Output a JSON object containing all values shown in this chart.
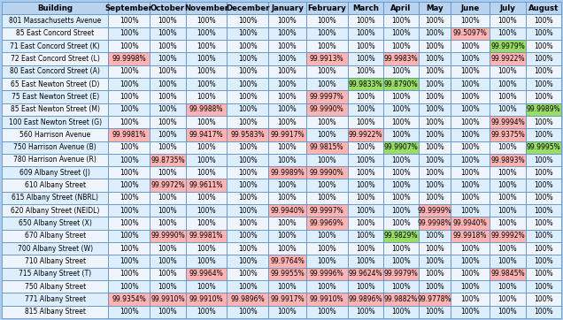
{
  "columns": [
    "Building",
    "September",
    "October",
    "November",
    "December",
    "January",
    "February",
    "March",
    "April",
    "May",
    "June",
    "July",
    "August"
  ],
  "rows": [
    [
      "801 Massachusetts Avenue",
      "100%",
      "100%",
      "100%",
      "100%",
      "100%",
      "100%",
      "100%",
      "100%",
      "100%",
      "100%",
      "100%",
      "100%"
    ],
    [
      "85 East Concord Street",
      "100%",
      "100%",
      "100%",
      "100%",
      "100%",
      "100%",
      "100%",
      "100%",
      "100%",
      "99.5097%",
      "100%",
      "100%"
    ],
    [
      "71 East Concord Street (K)",
      "100%",
      "100%",
      "100%",
      "100%",
      "100%",
      "100%",
      "100%",
      "100%",
      "100%",
      "100%",
      "99.9979%",
      "100%"
    ],
    [
      "72 East Concord Street (L)",
      "99.9998%",
      "100%",
      "100%",
      "100%",
      "100%",
      "99.9913%",
      "100%",
      "99.9983%",
      "100%",
      "100%",
      "99.9922%",
      "100%"
    ],
    [
      "80 East Concord Street (A)",
      "100%",
      "100%",
      "100%",
      "100%",
      "100%",
      "100%",
      "100%",
      "100%",
      "100%",
      "100%",
      "100%",
      "100%"
    ],
    [
      "65 East Newton Street (D)",
      "100%",
      "100%",
      "100%",
      "100%",
      "100%",
      "100%",
      "99.9833%",
      "99.8790%",
      "100%",
      "100%",
      "100%",
      "100%"
    ],
    [
      "75 East Newton Street (E)",
      "100%",
      "100%",
      "100%",
      "100%",
      "100%",
      "99.9997%",
      "100%",
      "100%",
      "100%",
      "100%",
      "100%",
      "100%"
    ],
    [
      "85 East Newton Street (M)",
      "100%",
      "100%",
      "99.9988%",
      "100%",
      "100%",
      "99.9990%",
      "100%",
      "100%",
      "100%",
      "100%",
      "100%",
      "99.9989%"
    ],
    [
      "100 East Newton Street (G)",
      "100%",
      "100%",
      "100%",
      "100%",
      "100%",
      "100%",
      "100%",
      "100%",
      "100%",
      "100%",
      "99.9994%",
      "100%"
    ],
    [
      "560 Harrison Avenue",
      "99.9981%",
      "100%",
      "99.9417%",
      "99.9583%",
      "99.9917%",
      "100%",
      "99.9922%",
      "100%",
      "100%",
      "100%",
      "99.9375%",
      "100%"
    ],
    [
      "750 Harrison Avenue (B)",
      "100%",
      "100%",
      "100%",
      "100%",
      "100%",
      "99.9815%",
      "100%",
      "99.9907%",
      "100%",
      "100%",
      "100%",
      "99.9995%"
    ],
    [
      "780 Harrison Avenue (R)",
      "100%",
      "99.8735%",
      "100%",
      "100%",
      "100%",
      "100%",
      "100%",
      "100%",
      "100%",
      "100%",
      "99.9893%",
      "100%"
    ],
    [
      "609 Albany Street (J)",
      "100%",
      "100%",
      "100%",
      "100%",
      "99.9989%",
      "99.9990%",
      "100%",
      "100%",
      "100%",
      "100%",
      "100%",
      "100%"
    ],
    [
      "610 Albany Street",
      "100%",
      "99.9972%",
      "99.9611%",
      "100%",
      "100%",
      "100%",
      "100%",
      "100%",
      "100%",
      "100%",
      "100%",
      "100%"
    ],
    [
      "615 Albany Street (NBRL)",
      "100%",
      "100%",
      "100%",
      "100%",
      "100%",
      "100%",
      "100%",
      "100%",
      "100%",
      "100%",
      "100%",
      "100%"
    ],
    [
      "620 Albany Street (NEIDL)",
      "100%",
      "100%",
      "100%",
      "100%",
      "99.9940%",
      "99.9997%",
      "100%",
      "100%",
      "99.9999%",
      "100%",
      "100%",
      "100%"
    ],
    [
      "650 Albany Street (X)",
      "100%",
      "100%",
      "100%",
      "100%",
      "100%",
      "99.9969%",
      "100%",
      "100%",
      "99.9998%",
      "99.9940%",
      "100%",
      "100%"
    ],
    [
      "670 Albany Street",
      "100%",
      "99.9990%",
      "99.9981%",
      "100%",
      "100%",
      "100%",
      "100%",
      "99.9829%",
      "100%",
      "99.9918%",
      "99.9992%",
      "100%"
    ],
    [
      "700 Albany Street (W)",
      "100%",
      "100%",
      "100%",
      "100%",
      "100%",
      "100%",
      "100%",
      "100%",
      "100%",
      "100%",
      "100%",
      "100%"
    ],
    [
      "710 Albany Street",
      "100%",
      "100%",
      "100%",
      "100%",
      "99.9764%",
      "100%",
      "100%",
      "100%",
      "100%",
      "100%",
      "100%",
      "100%"
    ],
    [
      "715 Albany Street (T)",
      "100%",
      "100%",
      "99.9964%",
      "100%",
      "99.9955%",
      "99.9996%",
      "99.9624%",
      "99.9979%",
      "100%",
      "100%",
      "99.9845%",
      "100%"
    ],
    [
      "750 Albany Street",
      "100%",
      "100%",
      "100%",
      "100%",
      "100%",
      "100%",
      "100%",
      "100%",
      "100%",
      "100%",
      "100%",
      "100%"
    ],
    [
      "771 Albany Street",
      "99.9354%",
      "99.9910%",
      "99.9910%",
      "99.9896%",
      "99.9917%",
      "99.9910%",
      "99.9896%",
      "99.9882%",
      "99.9778%",
      "100%",
      "100%",
      "100%"
    ],
    [
      "815 Albany Street",
      "100%",
      "100%",
      "100%",
      "100%",
      "100%",
      "100%",
      "100%",
      "100%",
      "100%",
      "100%",
      "100%",
      "100%"
    ]
  ],
  "cell_colors": {
    "85 East Concord Street_June": "pink",
    "71 East Concord Street (K)_July": "green",
    "72 East Concord Street (L)_September": "pink",
    "72 East Concord Street (L)_February": "pink",
    "72 East Concord Street (L)_April": "pink",
    "72 East Concord Street (L)_July": "pink",
    "65 East Newton Street (D)_March": "green",
    "65 East Newton Street (D)_April": "green",
    "75 East Newton Street (E)_February": "pink",
    "85 East Newton Street (M)_November": "pink",
    "85 East Newton Street (M)_February": "pink",
    "85 East Newton Street (M)_August": "green",
    "100 East Newton Street (G)_July": "pink",
    "560 Harrison Avenue_September": "pink",
    "560 Harrison Avenue_November": "pink",
    "560 Harrison Avenue_December": "pink",
    "560 Harrison Avenue_January": "pink",
    "560 Harrison Avenue_March": "pink",
    "560 Harrison Avenue_July": "pink",
    "750 Harrison Avenue (B)_February": "pink",
    "750 Harrison Avenue (B)_April": "green",
    "750 Harrison Avenue (B)_August": "green",
    "780 Harrison Avenue (R)_October": "pink",
    "780 Harrison Avenue (R)_July": "pink",
    "609 Albany Street (J)_January": "pink",
    "609 Albany Street (J)_February": "pink",
    "610 Albany Street_October": "pink",
    "610 Albany Street_November": "pink",
    "620 Albany Street (NEIDL)_January": "pink",
    "620 Albany Street (NEIDL)_February": "pink",
    "620 Albany Street (NEIDL)_May": "pink",
    "650 Albany Street (X)_February": "pink",
    "650 Albany Street (X)_May": "pink",
    "650 Albany Street (X)_June": "pink",
    "670 Albany Street_October": "pink",
    "670 Albany Street_November": "pink",
    "670 Albany Street_April": "green",
    "670 Albany Street_June": "pink",
    "670 Albany Street_July": "pink",
    "710 Albany Street_January": "pink",
    "715 Albany Street (T)_November": "pink",
    "715 Albany Street (T)_January": "pink",
    "715 Albany Street (T)_February": "pink",
    "715 Albany Street (T)_March": "pink",
    "715 Albany Street (T)_April": "pink",
    "715 Albany Street (T)_July": "pink",
    "771 Albany Street_September": "pink",
    "771 Albany Street_October": "pink",
    "771 Albany Street_November": "pink",
    "771 Albany Street_December": "pink",
    "771 Albany Street_January": "pink",
    "771 Albany Street_February": "pink",
    "771 Albany Street_March": "pink",
    "771 Albany Street_April": "pink",
    "771 Albany Street_May": "pink"
  },
  "header_bg": "#b8d4f0",
  "row_bg_odd": "#ddeeff",
  "row_bg_even": "#eef5ff",
  "outer_bg": "#aaccee",
  "header_text_color": "#000000",
  "grid_color": "#5588bb",
  "pink_color": "#ffb3b3",
  "green_color": "#99dd66",
  "font_size": 5.5,
  "header_font_size": 6.2,
  "col_widths_rel": [
    1.85,
    0.72,
    0.62,
    0.72,
    0.72,
    0.65,
    0.72,
    0.62,
    0.62,
    0.55,
    0.68,
    0.62,
    0.62
  ]
}
